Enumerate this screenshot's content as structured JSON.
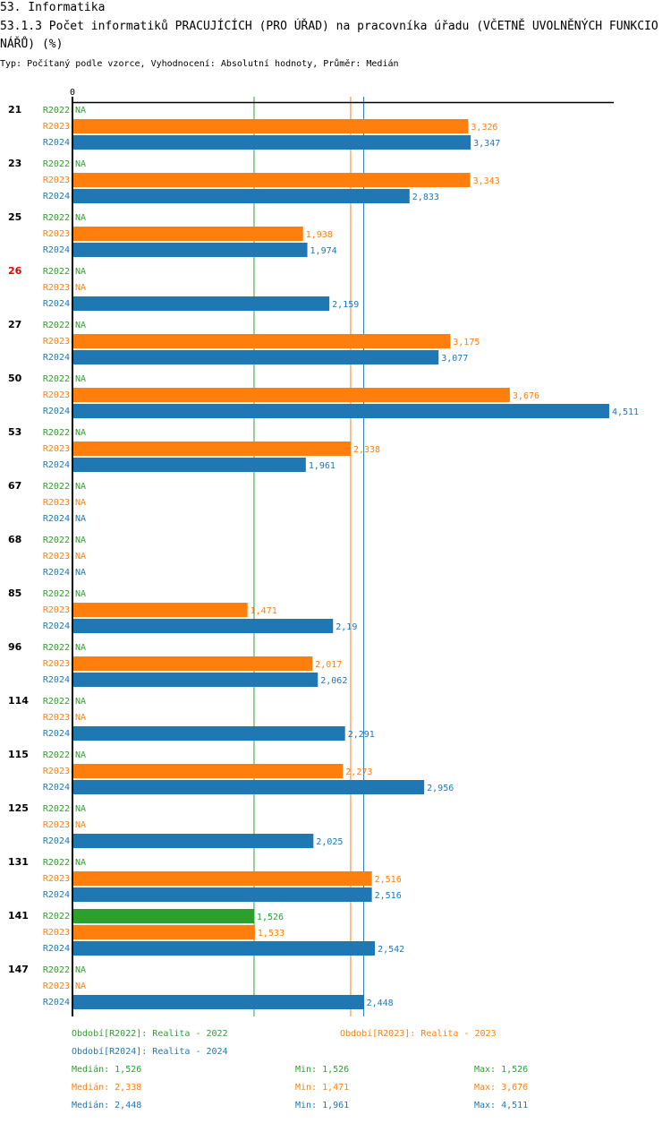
{
  "header": {
    "title": "53. Informatika",
    "subtitle": "53.1.3 Počet informatiků PRACUJÍCÍCH (PRO ÚŘAD) na pracovníka úřadu (VČETNĚ UVOLNĚNÝCH FUNKCIONÁŘŮ) (%)",
    "meta": "Typ: Počítaný podle vzorce, Vyhodnocení: Absolutní hodnoty, Průměr: Medián"
  },
  "colors": {
    "R2022": "#2ca02c",
    "R2023": "#ff7f0e",
    "R2024": "#1f77b4",
    "highlight": "#e00000"
  },
  "chart_data": {
    "type": "bar",
    "orientation": "horizontal",
    "title": "53.1.3 Počet informatiků PRACUJÍCÍCH (PRO ÚŘAD) na pracovníka úřadu (VČETNĚ UVOLNĚNÝCH FUNKCIONÁŘŮ) (%)",
    "xlabel": "",
    "ylabel": "",
    "xlim": [
      0,
      4.6
    ],
    "x_tick_labels": [
      "0"
    ],
    "na_label": "NA",
    "categories": [
      "21",
      "23",
      "25",
      "26",
      "27",
      "50",
      "53",
      "67",
      "68",
      "85",
      "96",
      "114",
      "115",
      "125",
      "131",
      "141",
      "147"
    ],
    "highlighted_category": "26",
    "series": [
      {
        "name": "R2022",
        "values": [
          null,
          null,
          null,
          null,
          null,
          null,
          null,
          null,
          null,
          null,
          null,
          null,
          null,
          null,
          null,
          1.526,
          null
        ],
        "labels": [
          "",
          "",
          "",
          "",
          "",
          "",
          "",
          "",
          "",
          "",
          "",
          "",
          "",
          "",
          "",
          "1,526",
          ""
        ]
      },
      {
        "name": "R2023",
        "values": [
          3.326,
          3.343,
          1.938,
          null,
          3.175,
          3.676,
          2.338,
          null,
          null,
          1.471,
          2.017,
          null,
          2.273,
          null,
          2.516,
          1.533,
          null
        ],
        "labels": [
          "3,326",
          "3,343",
          "1,938",
          "",
          "3,175",
          "3,676",
          "2,338",
          "",
          "",
          "1,471",
          "2,017",
          "",
          "2,273",
          "",
          "2,516",
          "1,533",
          ""
        ]
      },
      {
        "name": "R2024",
        "values": [
          3.347,
          2.833,
          1.974,
          2.159,
          3.077,
          4.511,
          1.961,
          null,
          null,
          2.19,
          2.062,
          2.291,
          2.956,
          2.025,
          2.516,
          2.542,
          2.448
        ],
        "labels": [
          "3,347",
          "2,833",
          "1,974",
          "2,159",
          "3,077",
          "4,511",
          "1,961",
          "",
          "",
          "2,19",
          "2,062",
          "2,291",
          "2,956",
          "2,025",
          "2,516",
          "2,542",
          "2,448"
        ]
      }
    ],
    "reference_lines": [
      {
        "series": "R2022",
        "type": "median",
        "value": 1.526
      },
      {
        "series": "R2023",
        "type": "median",
        "value": 2.338
      },
      {
        "series": "R2024",
        "type": "median",
        "value": 2.448
      }
    ],
    "legend": {
      "position": "bottom",
      "periods": [
        {
          "series": "R2022",
          "text": "Období[R2022]: Realita - 2022"
        },
        {
          "series": "R2023",
          "text": "Období[R2023]: Realita - 2023"
        },
        {
          "series": "R2024",
          "text": "Období[R2024]: Realita - 2024"
        }
      ],
      "stats": [
        {
          "series": "R2022",
          "median": "Medián: 1,526",
          "min": "Min: 1,526",
          "max": "Max: 1,526"
        },
        {
          "series": "R2023",
          "median": "Medián: 2,338",
          "min": "Min: 1,471",
          "max": "Max: 3,676"
        },
        {
          "series": "R2024",
          "median": "Medián: 2,448",
          "min": "Min: 1,961",
          "max": "Max: 4,511"
        }
      ]
    }
  }
}
